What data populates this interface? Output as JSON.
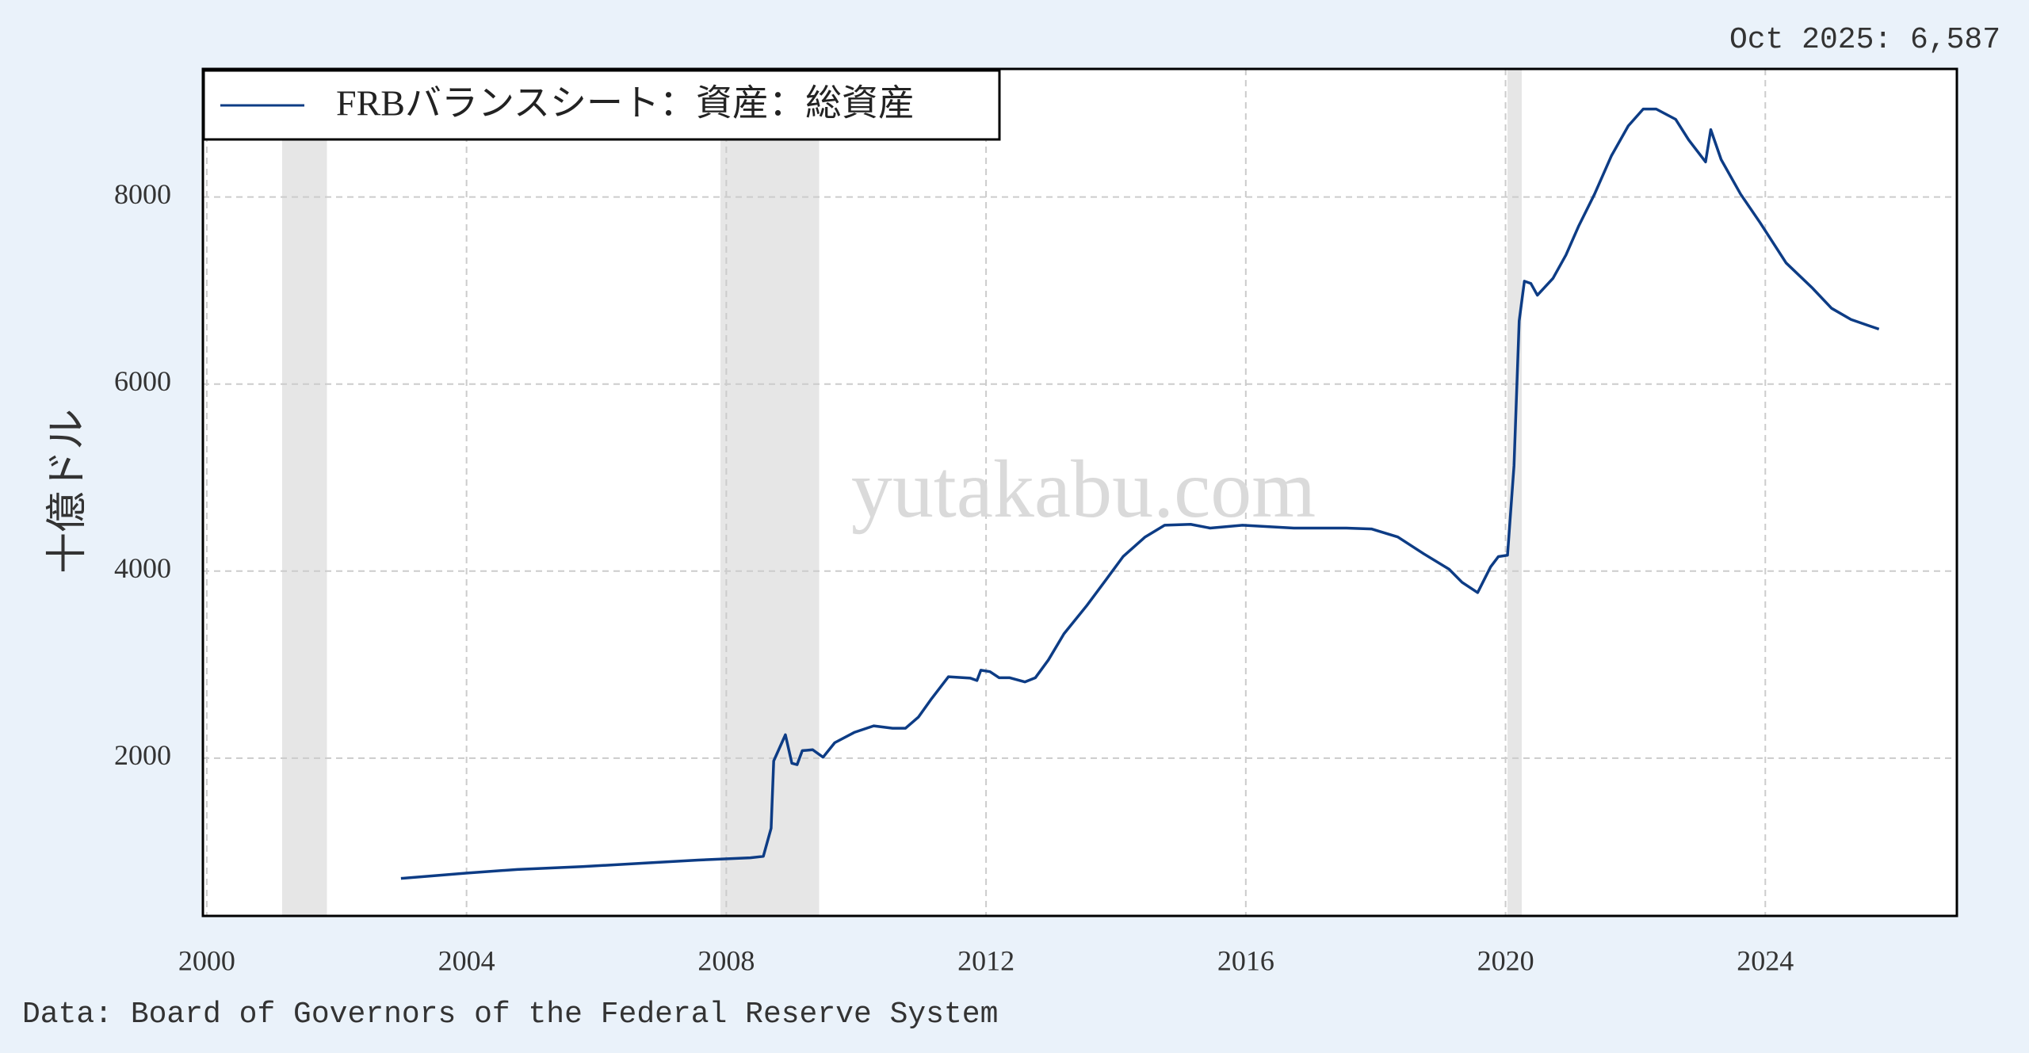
{
  "chart_data": {
    "type": "line",
    "annotation": "Oct 2025: 6,587",
    "ylabel": "十億ドル",
    "watermark": "yutakabu.com",
    "source": "Data: Board of Governors of the Federal Reserve System",
    "xlim": [
      1999.94,
      2026.95
    ],
    "ylim": [
      313,
      9369
    ],
    "xticks": [
      2000,
      2004,
      2008,
      2012,
      2016,
      2020,
      2024
    ],
    "yticks": [
      2000,
      4000,
      6000,
      8000
    ],
    "grid": true,
    "legend": "upper left",
    "recessions": [
      [
        2001.16,
        2001.85
      ],
      [
        2007.91,
        2009.43
      ],
      [
        2020.03,
        2020.25
      ]
    ],
    "x": [
      2002.99,
      2003.99,
      2004.78,
      2005.78,
      2006.78,
      2007.57,
      2008.37,
      2008.57,
      2008.69,
      2008.73,
      2008.91,
      2009.01,
      2009.09,
      2009.17,
      2009.33,
      2009.49,
      2009.67,
      2009.97,
      2010.27,
      2010.56,
      2010.76,
      2010.96,
      2011.16,
      2011.42,
      2011.76,
      2011.86,
      2011.92,
      2012.06,
      2012.2,
      2012.36,
      2012.6,
      2012.76,
      2012.96,
      2013.2,
      2013.55,
      2013.85,
      2014.11,
      2014.45,
      2014.75,
      2015.15,
      2015.45,
      2015.95,
      2016.74,
      2017.55,
      2017.94,
      2018.34,
      2018.74,
      2019.13,
      2019.33,
      2019.57,
      2019.77,
      2019.89,
      2020.03,
      2020.13,
      2020.21,
      2020.29,
      2020.39,
      2020.49,
      2020.73,
      2020.93,
      2021.13,
      2021.37,
      2021.63,
      2021.89,
      2022.12,
      2022.32,
      2022.62,
      2022.82,
      2023.08,
      2023.16,
      2023.32,
      2023.62,
      2023.92,
      2024.32,
      2024.72,
      2025.02,
      2025.32,
      2025.61,
      2025.75
    ],
    "series": [
      {
        "name": "FRBバランスシート：資産：総資産",
        "color": "#0d3c85",
        "values": [
          714,
          770,
          810,
          840,
          880,
          910,
          935,
          950,
          1250,
          1970,
          2250,
          1945,
          1930,
          2080,
          2090,
          2010,
          2165,
          2275,
          2345,
          2320,
          2320,
          2440,
          2635,
          2870,
          2855,
          2830,
          2940,
          2925,
          2860,
          2860,
          2815,
          2860,
          3050,
          3330,
          3630,
          3910,
          4155,
          4365,
          4490,
          4500,
          4460,
          4490,
          4460,
          4460,
          4450,
          4365,
          4185,
          4020,
          3880,
          3770,
          4045,
          4155,
          4170,
          5125,
          6675,
          7100,
          7075,
          6950,
          7130,
          7380,
          7695,
          8030,
          8440,
          8760,
          8940,
          8940,
          8830,
          8610,
          8375,
          8720,
          8400,
          8030,
          7725,
          7295,
          7030,
          6810,
          6690,
          6620,
          6587
        ]
      }
    ]
  }
}
